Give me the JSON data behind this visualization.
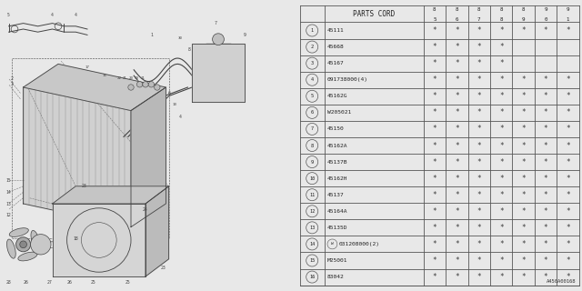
{
  "bg_color": "#e8e8e8",
  "header_col1": "PARTS CORD",
  "year_cols": [
    "85",
    "86",
    "87",
    "88",
    "89",
    "90",
    "91"
  ],
  "rows": [
    {
      "num": "1",
      "part": "45111",
      "marks": [
        1,
        1,
        1,
        1,
        1,
        1,
        1
      ]
    },
    {
      "num": "2",
      "part": "45668",
      "marks": [
        1,
        1,
        1,
        1,
        0,
        0,
        0
      ]
    },
    {
      "num": "3",
      "part": "45167",
      "marks": [
        1,
        1,
        1,
        1,
        0,
        0,
        0
      ]
    },
    {
      "num": "4",
      "part": "091738000(4)",
      "marks": [
        1,
        1,
        1,
        1,
        1,
        1,
        1
      ]
    },
    {
      "num": "5",
      "part": "45162G",
      "marks": [
        1,
        1,
        1,
        1,
        1,
        1,
        1
      ]
    },
    {
      "num": "6",
      "part": "W205021",
      "marks": [
        1,
        1,
        1,
        1,
        1,
        1,
        1
      ]
    },
    {
      "num": "7",
      "part": "45150",
      "marks": [
        1,
        1,
        1,
        1,
        1,
        1,
        1
      ]
    },
    {
      "num": "8",
      "part": "45162A",
      "marks": [
        1,
        1,
        1,
        1,
        1,
        1,
        1
      ]
    },
    {
      "num": "9",
      "part": "45137B",
      "marks": [
        1,
        1,
        1,
        1,
        1,
        1,
        1
      ]
    },
    {
      "num": "10",
      "part": "45162H",
      "marks": [
        1,
        1,
        1,
        1,
        1,
        1,
        1
      ]
    },
    {
      "num": "11",
      "part": "45137",
      "marks": [
        1,
        1,
        1,
        1,
        1,
        1,
        1
      ]
    },
    {
      "num": "12",
      "part": "45164A",
      "marks": [
        1,
        1,
        1,
        1,
        1,
        1,
        1
      ]
    },
    {
      "num": "13",
      "part": "45135D",
      "marks": [
        1,
        1,
        1,
        1,
        1,
        1,
        1
      ]
    },
    {
      "num": "14",
      "part": "W031208000(2)",
      "marks": [
        1,
        1,
        1,
        1,
        1,
        1,
        1
      ]
    },
    {
      "num": "15",
      "part": "M25001",
      "marks": [
        1,
        1,
        1,
        1,
        1,
        1,
        1
      ]
    },
    {
      "num": "16",
      "part": "83042",
      "marks": [
        1,
        1,
        1,
        1,
        1,
        1,
        1
      ]
    }
  ],
  "footer_text": "A450A00168",
  "lc": "#444444",
  "lc2": "#888888"
}
